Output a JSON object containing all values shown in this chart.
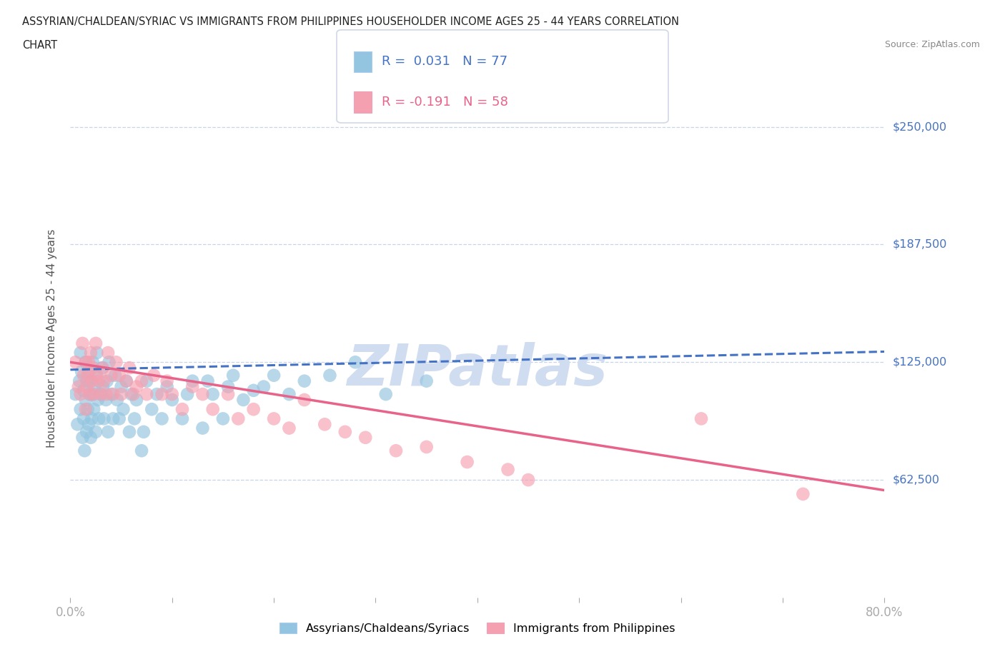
{
  "title_line1": "ASSYRIAN/CHALDEAN/SYRIAC VS IMMIGRANTS FROM PHILIPPINES HOUSEHOLDER INCOME AGES 25 - 44 YEARS CORRELATION",
  "title_line2": "CHART",
  "source_text": "Source: ZipAtlas.com",
  "ylabel": "Householder Income Ages 25 - 44 years",
  "xlim": [
    0.0,
    0.8
  ],
  "ylim": [
    0,
    275000
  ],
  "yticks": [
    0,
    62500,
    125000,
    187500,
    250000
  ],
  "ytick_labels": [
    "",
    "$62,500",
    "$125,000",
    "$187,500",
    "$250,000"
  ],
  "xticks": [
    0.0,
    0.1,
    0.2,
    0.3,
    0.4,
    0.5,
    0.6,
    0.7,
    0.8
  ],
  "blue_R": 0.031,
  "blue_N": 77,
  "pink_R": -0.191,
  "pink_N": 58,
  "blue_color": "#93c4e0",
  "pink_color": "#f5a0b0",
  "blue_trend_color": "#4472C4",
  "pink_trend_color": "#E8638A",
  "grid_color": "#c8d4e8",
  "background_color": "#ffffff",
  "watermark_text": "ZIPatlas",
  "watermark_color": "#d0ddf0",
  "blue_scatter_x": [
    0.005,
    0.007,
    0.009,
    0.01,
    0.01,
    0.011,
    0.012,
    0.013,
    0.013,
    0.014,
    0.015,
    0.015,
    0.016,
    0.016,
    0.017,
    0.018,
    0.018,
    0.019,
    0.02,
    0.02,
    0.021,
    0.022,
    0.022,
    0.023,
    0.024,
    0.025,
    0.025,
    0.026,
    0.027,
    0.028,
    0.03,
    0.031,
    0.032,
    0.033,
    0.035,
    0.036,
    0.037,
    0.038,
    0.04,
    0.042,
    0.044,
    0.046,
    0.048,
    0.05,
    0.052,
    0.055,
    0.058,
    0.06,
    0.063,
    0.065,
    0.07,
    0.072,
    0.075,
    0.08,
    0.085,
    0.09,
    0.095,
    0.1,
    0.11,
    0.115,
    0.12,
    0.13,
    0.135,
    0.14,
    0.15,
    0.155,
    0.16,
    0.17,
    0.18,
    0.19,
    0.2,
    0.215,
    0.23,
    0.255,
    0.28,
    0.31,
    0.35
  ],
  "blue_scatter_y": [
    108000,
    92000,
    115000,
    100000,
    130000,
    120000,
    85000,
    95000,
    110000,
    78000,
    105000,
    125000,
    88000,
    115000,
    100000,
    92000,
    120000,
    108000,
    85000,
    115000,
    95000,
    108000,
    125000,
    100000,
    112000,
    88000,
    118000,
    130000,
    105000,
    95000,
    108000,
    122000,
    112000,
    95000,
    105000,
    115000,
    88000,
    125000,
    108000,
    95000,
    118000,
    105000,
    95000,
    112000,
    100000,
    115000,
    88000,
    108000,
    95000,
    105000,
    78000,
    88000,
    115000,
    100000,
    108000,
    95000,
    112000,
    105000,
    95000,
    108000,
    115000,
    90000,
    115000,
    108000,
    95000,
    112000,
    118000,
    105000,
    110000,
    112000,
    118000,
    108000,
    115000,
    118000,
    125000,
    108000,
    115000
  ],
  "pink_scatter_x": [
    0.005,
    0.008,
    0.01,
    0.012,
    0.013,
    0.015,
    0.015,
    0.016,
    0.017,
    0.018,
    0.019,
    0.02,
    0.021,
    0.022,
    0.023,
    0.025,
    0.026,
    0.028,
    0.03,
    0.032,
    0.033,
    0.035,
    0.037,
    0.04,
    0.042,
    0.045,
    0.048,
    0.05,
    0.055,
    0.058,
    0.062,
    0.065,
    0.07,
    0.075,
    0.082,
    0.09,
    0.095,
    0.1,
    0.11,
    0.12,
    0.13,
    0.14,
    0.155,
    0.165,
    0.18,
    0.2,
    0.215,
    0.23,
    0.25,
    0.27,
    0.29,
    0.32,
    0.35,
    0.39,
    0.43,
    0.45,
    0.62,
    0.72
  ],
  "pink_scatter_y": [
    125000,
    112000,
    108000,
    135000,
    118000,
    100000,
    125000,
    112000,
    118000,
    125000,
    108000,
    130000,
    115000,
    122000,
    108000,
    135000,
    118000,
    115000,
    108000,
    122000,
    115000,
    108000,
    130000,
    118000,
    108000,
    125000,
    118000,
    108000,
    115000,
    122000,
    108000,
    112000,
    115000,
    108000,
    118000,
    108000,
    115000,
    108000,
    100000,
    112000,
    108000,
    100000,
    108000,
    95000,
    100000,
    95000,
    90000,
    105000,
    92000,
    88000,
    85000,
    78000,
    80000,
    72000,
    68000,
    62500,
    95000,
    55000
  ],
  "blue_trend_intercept": 121000,
  "blue_trend_slope": 12000,
  "pink_trend_intercept": 125000,
  "pink_trend_slope": -85000
}
